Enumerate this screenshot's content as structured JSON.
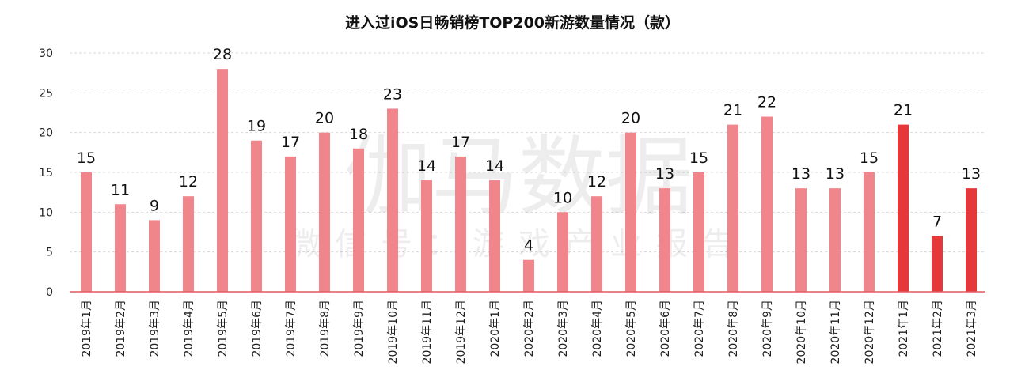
{
  "chart_data": {
    "type": "bar",
    "title": "进入过iOS日畅销榜TOP200新游数量情况（款）",
    "xlabel": "",
    "ylabel": "",
    "ylim": [
      0,
      30
    ],
    "yticks": [
      0,
      5,
      10,
      15,
      20,
      25,
      30
    ],
    "grid": true,
    "categories": [
      "2019年1月",
      "2019年2月",
      "2019年3月",
      "2019年4月",
      "2019年5月",
      "2019年6月",
      "2019年7月",
      "2019年8月",
      "2019年9月",
      "2019年10月",
      "2019年11月",
      "2019年12月",
      "2020年1月",
      "2020年2月",
      "2020年3月",
      "2020年4月",
      "2020年5月",
      "2020年6月",
      "2020年7月",
      "2020年8月",
      "2020年9月",
      "2020年10月",
      "2020年11月",
      "2020年12月",
      "2021年1月",
      "2021年2月",
      "2021年3月"
    ],
    "values": [
      15,
      11,
      9,
      12,
      28,
      19,
      17,
      20,
      18,
      23,
      14,
      17,
      14,
      4,
      10,
      12,
      20,
      13,
      15,
      21,
      22,
      13,
      13,
      15,
      21,
      7,
      13
    ],
    "highlight_from_index": 24,
    "colors": {
      "bar": "#f0858b",
      "highlight": "#e5383b",
      "axis": "#e15b60",
      "grid": "#d9d9d9"
    }
  },
  "watermark": {
    "main": "伽马数据",
    "sub": "微信号：游戏产业报告"
  }
}
